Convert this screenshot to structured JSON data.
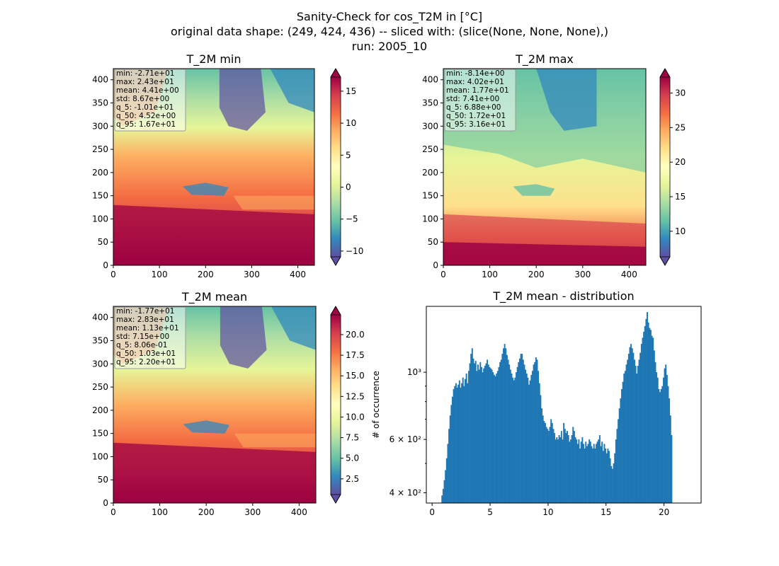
{
  "title_lines": [
    "Sanity-Check for cos_T2M in [°C]",
    "original data shape: (249, 424, 436) -- sliced with: (slice(None, None, None),)",
    "run: 2005_10"
  ],
  "colors": {
    "spectral_r": [
      "#5e4fa2",
      "#3288bd",
      "#66c2a5",
      "#abdda4",
      "#e6f598",
      "#ffffbf",
      "#fee08b",
      "#fdae61",
      "#f46d43",
      "#d53e4f",
      "#9e0142"
    ],
    "histogram_bar": "#1f77b4",
    "stats_box": "#ffffff"
  },
  "chart_data": [
    {
      "type": "heatmap",
      "title": "T_2M min",
      "x_ticks": [
        0,
        100,
        200,
        300,
        400
      ],
      "y_ticks": [
        0,
        50,
        100,
        150,
        200,
        250,
        300,
        350,
        400
      ],
      "xlim": [
        0,
        436
      ],
      "ylim": [
        0,
        424
      ],
      "colorbar": {
        "vmin": -10.9,
        "vmax": 17.2,
        "extend": "both",
        "ticks": [
          -10,
          -5,
          0,
          5,
          10,
          15
        ],
        "tick_labels": [
          "−10",
          "−5",
          "0",
          "5",
          "10",
          "15"
        ]
      },
      "stats": [
        "min: -2.71e+01",
        "max: 2.43e+01",
        "mean: 4.41e+00",
        "std: 8.67e+00",
        "q_5: -1.01e+01",
        "q_50: 4.52e+00",
        "q_95: 1.67e+01"
      ]
    },
    {
      "type": "heatmap",
      "title": "T_2M max",
      "x_ticks": [
        0,
        100,
        200,
        300,
        400
      ],
      "y_ticks": [
        0,
        50,
        100,
        150,
        200,
        250,
        300,
        350,
        400
      ],
      "xlim": [
        0,
        436
      ],
      "ylim": [
        0,
        424
      ],
      "colorbar": {
        "vmin": 6.3,
        "vmax": 32.3,
        "extend": "both",
        "ticks": [
          10,
          15,
          20,
          25,
          30
        ],
        "tick_labels": [
          "10",
          "15",
          "20",
          "25",
          "30"
        ]
      },
      "stats": [
        "min: -8.14e+00",
        "max: 4.02e+01",
        "mean: 1.77e+01",
        "std: 7.41e+00",
        "q_5: 6.88e+00",
        "q_50: 1.72e+01",
        "q_95: 3.16e+01"
      ]
    },
    {
      "type": "heatmap",
      "title": "T_2M mean",
      "x_ticks": [
        0,
        100,
        200,
        300,
        400
      ],
      "y_ticks": [
        0,
        50,
        100,
        150,
        200,
        250,
        300,
        350,
        400
      ],
      "xlim": [
        0,
        436
      ],
      "ylim": [
        0,
        424
      ],
      "colorbar": {
        "vmin": 0.6,
        "vmax": 22.4,
        "extend": "both",
        "ticks": [
          2.5,
          5.0,
          7.5,
          10.0,
          12.5,
          15.0,
          17.5,
          20.0
        ],
        "tick_labels": [
          "2.5",
          "5.0",
          "7.5",
          "10.0",
          "12.5",
          "15.0",
          "17.5",
          "20.0"
        ]
      },
      "stats": [
        "min: -1.77e+01",
        "max: 2.83e+01",
        "mean: 1.13e+01",
        "std: 7.15e+00",
        "q_5: 8.06e-01",
        "q_50: 1.03e+01",
        "q_95: 2.20e+01"
      ]
    },
    {
      "type": "bar",
      "title": "T_2M mean - distribution",
      "xlabel": "",
      "ylabel": "# of occurrence",
      "xlim": [
        -0.5,
        23.2
      ],
      "ylim": [
        370,
        1650
      ],
      "y_scale": "log",
      "x_ticks": [
        0,
        5,
        10,
        15,
        20
      ],
      "y_major_ticks": [
        {
          "value": 400,
          "label": "4 × 10²"
        },
        {
          "value": 600,
          "label": "6 × 10²"
        },
        {
          "value": 1000,
          "label": "10³"
        }
      ],
      "y_minor_ticks": [
        500,
        700,
        800,
        900
      ],
      "bins": {
        "start": 0.8,
        "width": 0.1
      },
      "values": [
        392,
        412,
        440,
        475,
        520,
        580,
        650,
        720,
        780,
        830,
        880,
        900,
        920,
        890,
        910,
        940,
        890,
        920,
        960,
        900,
        950,
        990,
        920,
        1010,
        1070,
        1150,
        1200,
        1110,
        1070,
        1090,
        1010,
        1060,
        1020,
        1080,
        1040,
        1000,
        1030,
        1050,
        1070,
        1100,
        1060,
        1040,
        1030,
        1020,
        1000,
        980,
        970,
        990,
        1010,
        1040,
        1080,
        1100,
        1150,
        1200,
        1240,
        1200,
        1140,
        1100,
        1060,
        1020,
        990,
        960,
        940,
        960,
        1000,
        1040,
        1080,
        1110,
        1150,
        1150,
        1100,
        1060,
        1020,
        990,
        960,
        910,
        940,
        980,
        1010,
        1060,
        1080,
        1120,
        1100,
        1010,
        920,
        840,
        760,
        720,
        690,
        680,
        660,
        650,
        640,
        660,
        700,
        680,
        650,
        630,
        600,
        610,
        600,
        620,
        610,
        640,
        600,
        680,
        650,
        630,
        640,
        620,
        590,
        600,
        620,
        660,
        640,
        610,
        600,
        580,
        600,
        560,
        590,
        610,
        580,
        560,
        590,
        570,
        580,
        600,
        590,
        570,
        560,
        580,
        560,
        580,
        590,
        600,
        620,
        570,
        590,
        550,
        580,
        560,
        540,
        560,
        550,
        520,
        490,
        480,
        500,
        540,
        600,
        650,
        700,
        760,
        820,
        880,
        930,
        990,
        1010,
        1060,
        1100,
        1150,
        1210,
        1240,
        1200,
        1160,
        1100,
        1050,
        990,
        1050,
        1100,
        1160,
        1240,
        1300,
        1360,
        1420,
        1500,
        1580,
        1460,
        1400,
        1380,
        1320,
        1300,
        1180,
        1080,
        1000,
        960,
        880,
        860,
        880,
        900,
        960,
        1030,
        1060,
        980,
        900,
        820,
        720,
        620
      ]
    }
  ]
}
